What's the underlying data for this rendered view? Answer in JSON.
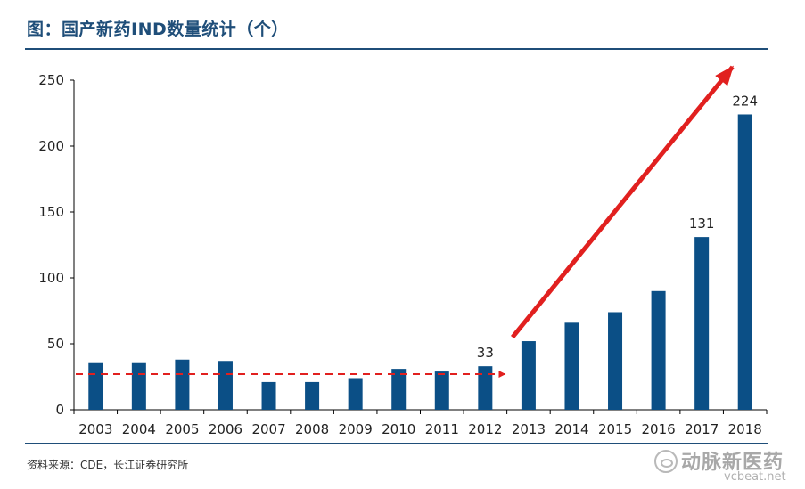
{
  "header": {
    "title": "图：国产新药IND数量统计（个）"
  },
  "footer": {
    "source": "资料来源：CDE，长江证券研究所"
  },
  "watermark": {
    "name": "动脉新医药",
    "site": "vcbeat.net"
  },
  "chart_data": {
    "type": "bar",
    "title": "图：国产新药IND数量统计（个）",
    "xlabel": "",
    "ylabel": "",
    "categories": [
      "2003",
      "2004",
      "2005",
      "2006",
      "2007",
      "2008",
      "2009",
      "2010",
      "2011",
      "2012",
      "2013",
      "2014",
      "2015",
      "2016",
      "2017",
      "2018"
    ],
    "values": [
      36,
      36,
      38,
      37,
      21,
      21,
      24,
      31,
      29,
      33,
      52,
      66,
      74,
      90,
      131,
      224
    ],
    "data_labels": {
      "2012": "33",
      "2017": "131",
      "2018": "224"
    },
    "ylim": [
      0,
      250
    ],
    "yticks": [
      "0",
      "50",
      "100",
      "150",
      "200",
      "250"
    ],
    "grid": false,
    "colors": {
      "bar": "#0b4f86",
      "arrow": "#e1201f",
      "axis": "#1f4e79"
    },
    "annotations": [
      {
        "kind": "dashed-arrow",
        "from_category": "2003",
        "to_category": "2012",
        "value": 27
      },
      {
        "kind": "solid-arrow",
        "from_category": "2013",
        "from_value": 55,
        "to_category": "2018",
        "to_value": 260
      }
    ]
  }
}
